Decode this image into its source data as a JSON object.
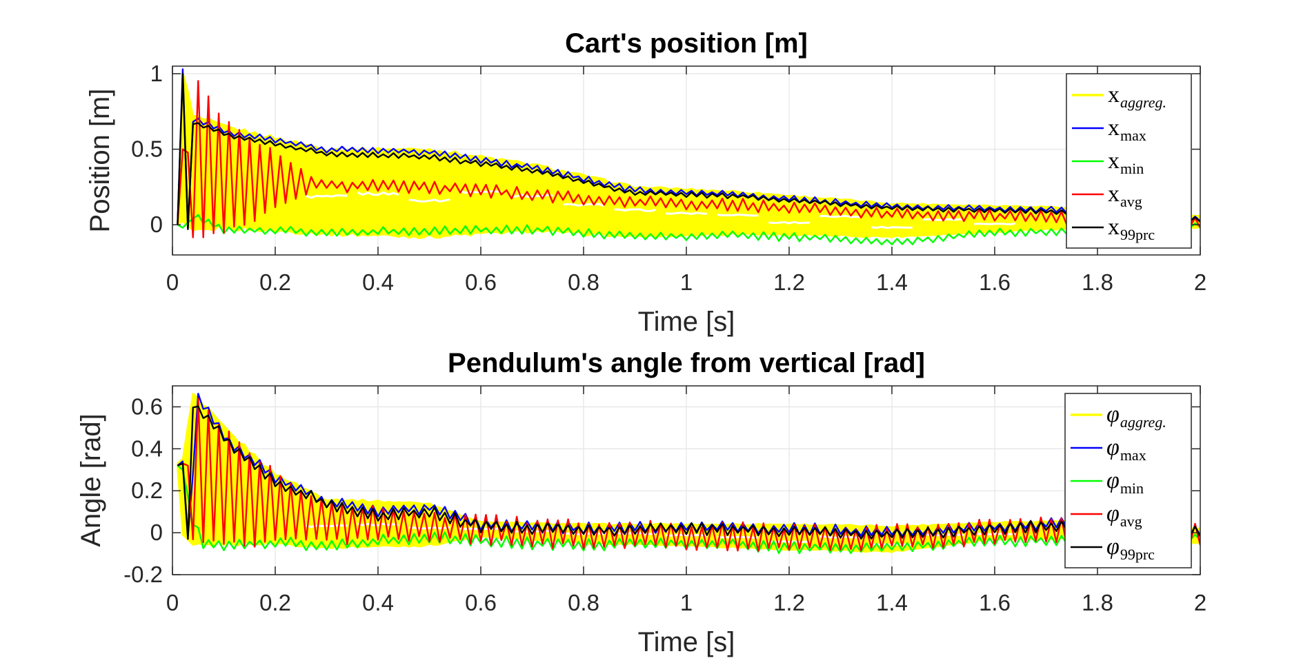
{
  "chart_data": [
    {
      "type": "line",
      "title": "Cart's position [m]",
      "xlabel": "Time [s]",
      "ylabel": "Position [m]",
      "xlim": [
        0,
        2
      ],
      "ylim": [
        -0.2,
        1.05
      ],
      "grid": true,
      "legend_position": "top-right",
      "xticks": [
        0,
        0.2,
        0.4,
        0.6,
        0.8,
        1,
        1.2,
        1.4,
        1.6,
        1.8,
        2
      ],
      "xtick_labels": [
        "0",
        "0.2",
        "0.4",
        "0.6",
        "0.8",
        "1",
        "1.2",
        "1.4",
        "1.6",
        "1.8",
        "2"
      ],
      "yticks": [
        0,
        0.5,
        1
      ],
      "ytick_labels": [
        "0",
        "0.5",
        "1"
      ],
      "start": 0.01,
      "dt": 0.01,
      "points": 200,
      "series": [
        {
          "name": "x_aggreg.",
          "symbol": "x",
          "sub": "aggreg.",
          "sub_italic": true,
          "color": "#ffff00",
          "kind": "band",
          "knots": [
            [
              0.01,
              0.0,
              0.0
            ],
            [
              0.02,
              0.0,
              1.03
            ],
            [
              0.04,
              -0.05,
              0.72
            ],
            [
              0.1,
              -0.02,
              0.65
            ],
            [
              0.3,
              -0.06,
              0.5
            ],
            [
              0.5,
              -0.08,
              0.5
            ],
            [
              0.7,
              -0.04,
              0.4
            ],
            [
              0.9,
              -0.08,
              0.25
            ],
            [
              1.1,
              -0.06,
              0.22
            ],
            [
              1.4,
              -0.08,
              0.14
            ],
            [
              1.7,
              -0.03,
              0.12
            ],
            [
              2.0,
              -0.02,
              0.06
            ]
          ]
        },
        {
          "name": "x_max",
          "symbol": "x",
          "sub": "max",
          "sub_italic": false,
          "color": "#0000ff",
          "kind": "line",
          "knots": [
            [
              0.01,
              0.0
            ],
            [
              0.02,
              1.03
            ],
            [
              0.03,
              -0.02
            ],
            [
              0.04,
              0.7
            ],
            [
              0.1,
              0.62
            ],
            [
              0.3,
              0.5
            ],
            [
              0.5,
              0.48
            ],
            [
              0.7,
              0.38
            ],
            [
              0.9,
              0.23
            ],
            [
              1.1,
              0.2
            ],
            [
              1.4,
              0.12
            ],
            [
              1.7,
              0.1
            ],
            [
              2.0,
              0.04
            ]
          ],
          "amp": 0.015
        },
        {
          "name": "x_min",
          "symbol": "x",
          "sub": "min",
          "sub_italic": false,
          "color": "#00ff00",
          "kind": "line",
          "knots": [
            [
              0.01,
              0.0
            ],
            [
              0.02,
              -0.02
            ],
            [
              0.04,
              0.05
            ],
            [
              0.1,
              -0.03
            ],
            [
              0.3,
              -0.05
            ],
            [
              0.5,
              -0.04
            ],
            [
              0.7,
              -0.03
            ],
            [
              0.9,
              -0.08
            ],
            [
              1.1,
              -0.07
            ],
            [
              1.3,
              -0.09
            ],
            [
              1.4,
              -0.12
            ],
            [
              1.6,
              -0.05
            ],
            [
              1.8,
              -0.04
            ],
            [
              2.0,
              0.0
            ]
          ],
          "amp": 0.02
        },
        {
          "name": "x_avg",
          "symbol": "x",
          "sub": "avg",
          "sub_italic": false,
          "color": "#ff0000",
          "kind": "line",
          "knots": [
            [
              0.01,
              0.0
            ],
            [
              0.02,
              0.5
            ],
            [
              0.1,
              0.32
            ],
            [
              0.3,
              0.26
            ],
            [
              0.5,
              0.25
            ],
            [
              0.7,
              0.2
            ],
            [
              0.9,
              0.15
            ],
            [
              1.1,
              0.13
            ],
            [
              1.4,
              0.07
            ],
            [
              1.7,
              0.05
            ],
            [
              2.0,
              0.02
            ]
          ],
          "amp": 0.03,
          "osc_env": [
            [
              0.01,
              0.6
            ],
            [
              0.1,
              0.35
            ],
            [
              0.28,
              0.0
            ],
            [
              2.0,
              0.0
            ]
          ]
        },
        {
          "name": "x_99prc",
          "symbol": "x",
          "sub": "99prc",
          "sub_italic": false,
          "color": "#000000",
          "kind": "line",
          "knots": [
            [
              0.01,
              0.0
            ],
            [
              0.02,
              1.0
            ],
            [
              0.03,
              -0.03
            ],
            [
              0.04,
              0.68
            ],
            [
              0.1,
              0.6
            ],
            [
              0.3,
              0.47
            ],
            [
              0.5,
              0.45
            ],
            [
              0.7,
              0.36
            ],
            [
              0.9,
              0.21
            ],
            [
              1.1,
              0.19
            ],
            [
              1.4,
              0.11
            ],
            [
              1.7,
              0.09
            ],
            [
              2.0,
              0.03
            ]
          ],
          "amp": 0.012
        }
      ]
    },
    {
      "type": "line",
      "title": "Pendulum's angle from vertical [rad]",
      "xlabel": "Time [s]",
      "ylabel": "Angle [rad]",
      "xlim": [
        0,
        2
      ],
      "ylim": [
        -0.2,
        0.7
      ],
      "grid": true,
      "legend_position": "top-right",
      "xticks": [
        0,
        0.2,
        0.4,
        0.6,
        0.8,
        1,
        1.2,
        1.4,
        1.6,
        1.8,
        2
      ],
      "xtick_labels": [
        "0",
        "0.2",
        "0.4",
        "0.6",
        "0.8",
        "1",
        "1.2",
        "1.4",
        "1.6",
        "1.8",
        "2"
      ],
      "yticks": [
        -0.2,
        0,
        0.2,
        0.4,
        0.6
      ],
      "ytick_labels": [
        "-0.2",
        "0",
        "0.2",
        "0.4",
        "0.6"
      ],
      "start": 0.01,
      "dt": 0.01,
      "points": 200,
      "series": [
        {
          "name": "phi_aggreg.",
          "symbol": "φ",
          "sub": "aggreg.",
          "sub_italic": true,
          "color": "#ffff00",
          "kind": "band",
          "knots": [
            [
              0.01,
              0.3,
              0.33
            ],
            [
              0.02,
              -0.02,
              0.36
            ],
            [
              0.04,
              -0.07,
              0.66
            ],
            [
              0.1,
              -0.05,
              0.5
            ],
            [
              0.2,
              -0.05,
              0.28
            ],
            [
              0.3,
              -0.07,
              0.16
            ],
            [
              0.5,
              -0.06,
              0.14
            ],
            [
              0.6,
              -0.02,
              0.05
            ],
            [
              0.8,
              -0.05,
              0.04
            ],
            [
              1.0,
              -0.06,
              0.04
            ],
            [
              1.2,
              -0.08,
              0.04
            ],
            [
              1.4,
              -0.09,
              0.03
            ],
            [
              1.6,
              -0.03,
              0.05
            ],
            [
              1.8,
              -0.03,
              0.06
            ],
            [
              2.0,
              -0.05,
              0.02
            ]
          ]
        },
        {
          "name": "phi_max",
          "symbol": "φ",
          "sub": "max",
          "sub_italic": false,
          "color": "#0000ff",
          "kind": "line",
          "knots": [
            [
              0.01,
              0.32
            ],
            [
              0.02,
              0.34
            ],
            [
              0.03,
              -0.02
            ],
            [
              0.05,
              0.64
            ],
            [
              0.1,
              0.46
            ],
            [
              0.2,
              0.26
            ],
            [
              0.3,
              0.15
            ],
            [
              0.4,
              0.1
            ],
            [
              0.5,
              0.12
            ],
            [
              0.6,
              0.04
            ],
            [
              0.8,
              0.02
            ],
            [
              1.0,
              0.03
            ],
            [
              1.2,
              0.02
            ],
            [
              1.4,
              0.0
            ],
            [
              1.6,
              0.03
            ],
            [
              1.8,
              0.05
            ],
            [
              2.0,
              0.01
            ]
          ],
          "amp": 0.02
        },
        {
          "name": "phi_min",
          "symbol": "φ",
          "sub": "min",
          "sub_italic": false,
          "color": "#00ff00",
          "kind": "line",
          "knots": [
            [
              0.01,
              0.32
            ],
            [
              0.02,
              0.3
            ],
            [
              0.04,
              0.05
            ],
            [
              0.06,
              -0.06
            ],
            [
              0.2,
              -0.05
            ],
            [
              0.3,
              -0.06
            ],
            [
              0.4,
              -0.04
            ],
            [
              0.5,
              -0.02
            ],
            [
              0.6,
              -0.04
            ],
            [
              0.8,
              -0.06
            ],
            [
              1.0,
              -0.05
            ],
            [
              1.2,
              -0.07
            ],
            [
              1.4,
              -0.07
            ],
            [
              1.6,
              -0.04
            ],
            [
              1.8,
              -0.03
            ],
            [
              2.0,
              -0.02
            ]
          ],
          "amp": 0.02
        },
        {
          "name": "phi_avg",
          "symbol": "φ",
          "sub": "avg",
          "sub_italic": false,
          "color": "#ff0000",
          "kind": "line",
          "knots": [
            [
              0.01,
              0.32
            ],
            [
              0.02,
              0.33
            ],
            [
              0.05,
              0.3
            ],
            [
              0.1,
              0.22
            ],
            [
              0.2,
              0.12
            ],
            [
              0.3,
              0.05
            ],
            [
              0.5,
              0.03
            ],
            [
              0.7,
              0.0
            ],
            [
              0.9,
              -0.01
            ],
            [
              1.1,
              -0.02
            ],
            [
              1.3,
              -0.03
            ],
            [
              1.5,
              -0.01
            ],
            [
              1.7,
              0.01
            ],
            [
              2.0,
              0.0
            ]
          ],
          "amp": 0.03,
          "osc_env": [
            [
              0.01,
              0.0
            ],
            [
              0.04,
              0.32
            ],
            [
              0.1,
              0.25
            ],
            [
              0.25,
              0.08
            ],
            [
              0.45,
              0.03
            ],
            [
              2.0,
              0.02
            ]
          ]
        },
        {
          "name": "phi_99prc",
          "symbol": "φ",
          "sub": "99prc",
          "sub_italic": false,
          "color": "#000000",
          "kind": "line",
          "knots": [
            [
              0.01,
              0.32
            ],
            [
              0.02,
              0.33
            ],
            [
              0.03,
              -0.03
            ],
            [
              0.04,
              0.62
            ],
            [
              0.1,
              0.45
            ],
            [
              0.2,
              0.24
            ],
            [
              0.3,
              0.14
            ],
            [
              0.4,
              0.08
            ],
            [
              0.5,
              0.1
            ],
            [
              0.6,
              0.03
            ],
            [
              0.8,
              0.01
            ],
            [
              1.0,
              0.02
            ],
            [
              1.2,
              0.01
            ],
            [
              1.4,
              -0.01
            ],
            [
              1.6,
              0.02
            ],
            [
              1.8,
              0.04
            ],
            [
              2.0,
              0.0
            ]
          ],
          "amp": 0.02
        }
      ]
    }
  ]
}
